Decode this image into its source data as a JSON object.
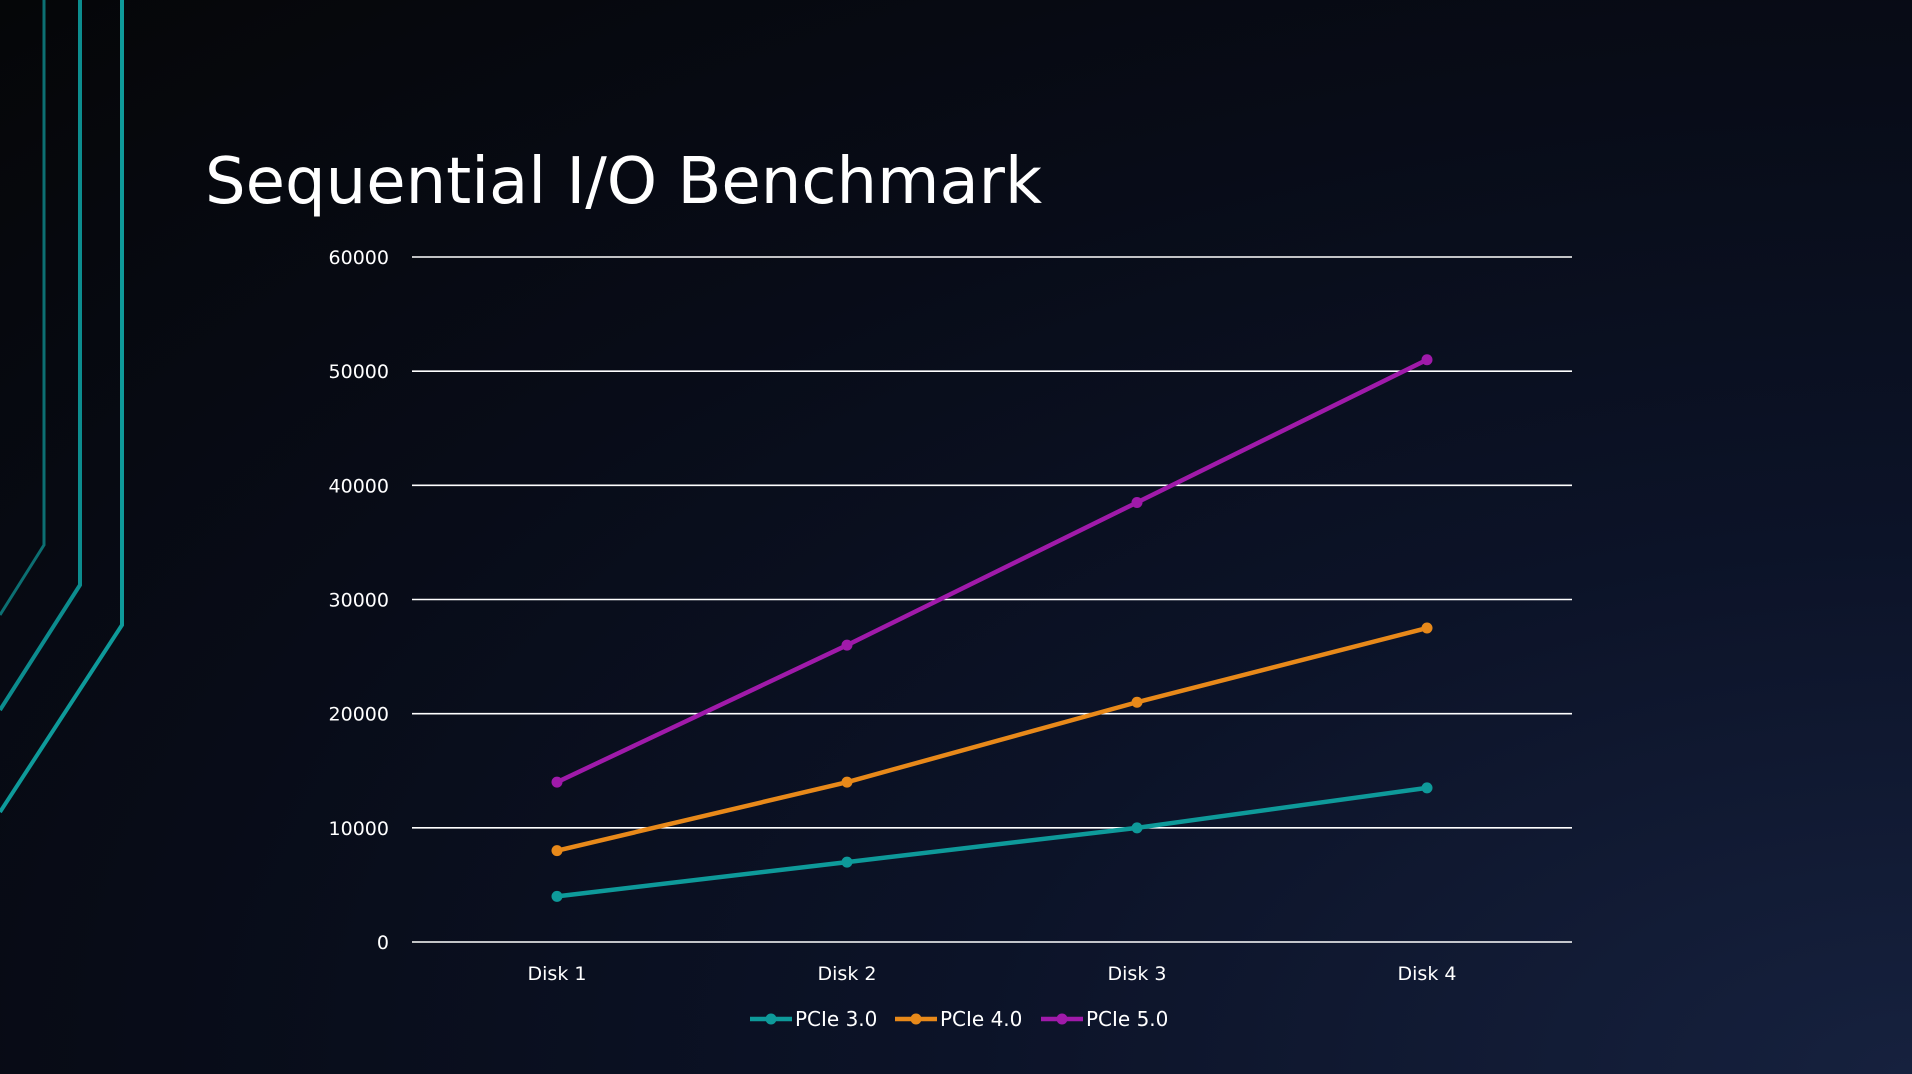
{
  "slide": {
    "title": "Sequential I/O Benchmark"
  },
  "colors": {
    "accent_teal": "#0e9a9a",
    "gridline": "#ffffff",
    "text": "#ffffff"
  },
  "chart_data": {
    "type": "line",
    "categories": [
      "Disk 1",
      "Disk 2",
      "Disk 3",
      "Disk 4"
    ],
    "series": [
      {
        "name": "PCIe 3.0",
        "color": "#0e9a9a",
        "values": [
          4000,
          7000,
          10000,
          13500
        ]
      },
      {
        "name": "PCIe 4.0",
        "color": "#e8891a",
        "values": [
          8000,
          14000,
          21000,
          27500
        ]
      },
      {
        "name": "PCIe 5.0",
        "color": "#a01aaa",
        "values": [
          14000,
          26000,
          38500,
          51000
        ]
      }
    ],
    "ylim": [
      0,
      60000
    ],
    "yticks": [
      0,
      10000,
      20000,
      30000,
      40000,
      50000,
      60000
    ],
    "grid": true,
    "legend_position": "bottom-center"
  }
}
